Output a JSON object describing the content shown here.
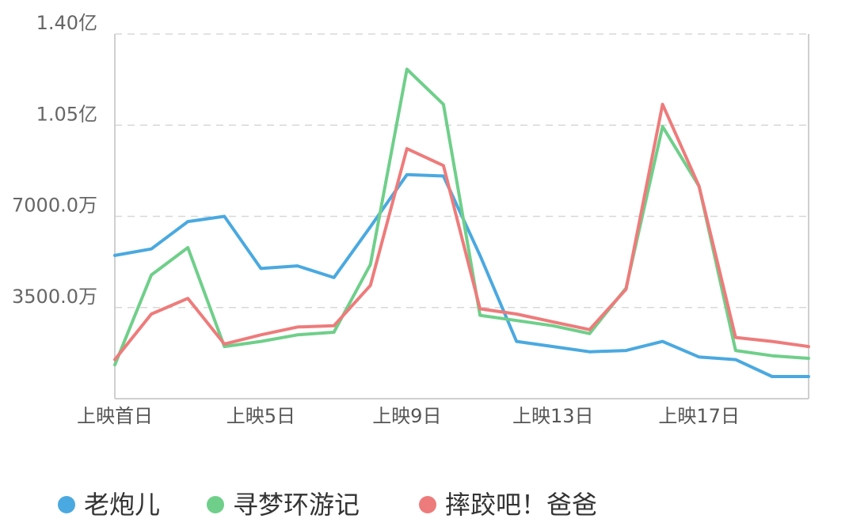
{
  "chart_data": {
    "type": "line",
    "yticks": [
      {
        "value": 35000000,
        "label": "3500.0万"
      },
      {
        "value": 70000000,
        "label": "7000.0万"
      },
      {
        "value": 105000000,
        "label": "1.05亿"
      },
      {
        "value": 140000000,
        "label": "1.40亿"
      }
    ],
    "ylim": [
      0,
      140000000
    ],
    "xticks": [
      {
        "index": 0,
        "label": "上映首日"
      },
      {
        "index": 4,
        "label": "上映5日"
      },
      {
        "index": 8,
        "label": "上映9日"
      },
      {
        "index": 12,
        "label": "上映13日"
      },
      {
        "index": 16,
        "label": "上映17日"
      }
    ],
    "x_count": 20,
    "grid": true,
    "legend_position": "bottom",
    "series": [
      {
        "name": "老炮儿",
        "color": "#4aa9e0",
        "values": [
          55000000,
          57500000,
          68000000,
          70000000,
          50000000,
          51000000,
          46500000,
          66000000,
          86000000,
          85500000,
          55000000,
          22000000,
          20000000,
          18000000,
          18500000,
          22000000,
          16000000,
          15000000,
          8500000,
          8500000
        ]
      },
      {
        "name": "寻梦环游记",
        "color": "#6fcf8a",
        "values": [
          13000000,
          47500000,
          58000000,
          20000000,
          22000000,
          24500000,
          25500000,
          51500000,
          126500000,
          113000000,
          32000000,
          30000000,
          28000000,
          25000000,
          42500000,
          104500000,
          81500000,
          18500000,
          16500000,
          15500000
        ]
      },
      {
        "name": "摔跤吧！爸爸",
        "color": "#ee7b7b",
        "values": [
          15000000,
          32500000,
          38500000,
          21000000,
          24500000,
          27500000,
          28000000,
          43500000,
          96000000,
          89500000,
          34500000,
          32500000,
          29500000,
          26500000,
          42000000,
          113000000,
          81500000,
          23500000,
          22000000,
          20000000
        ]
      }
    ]
  }
}
